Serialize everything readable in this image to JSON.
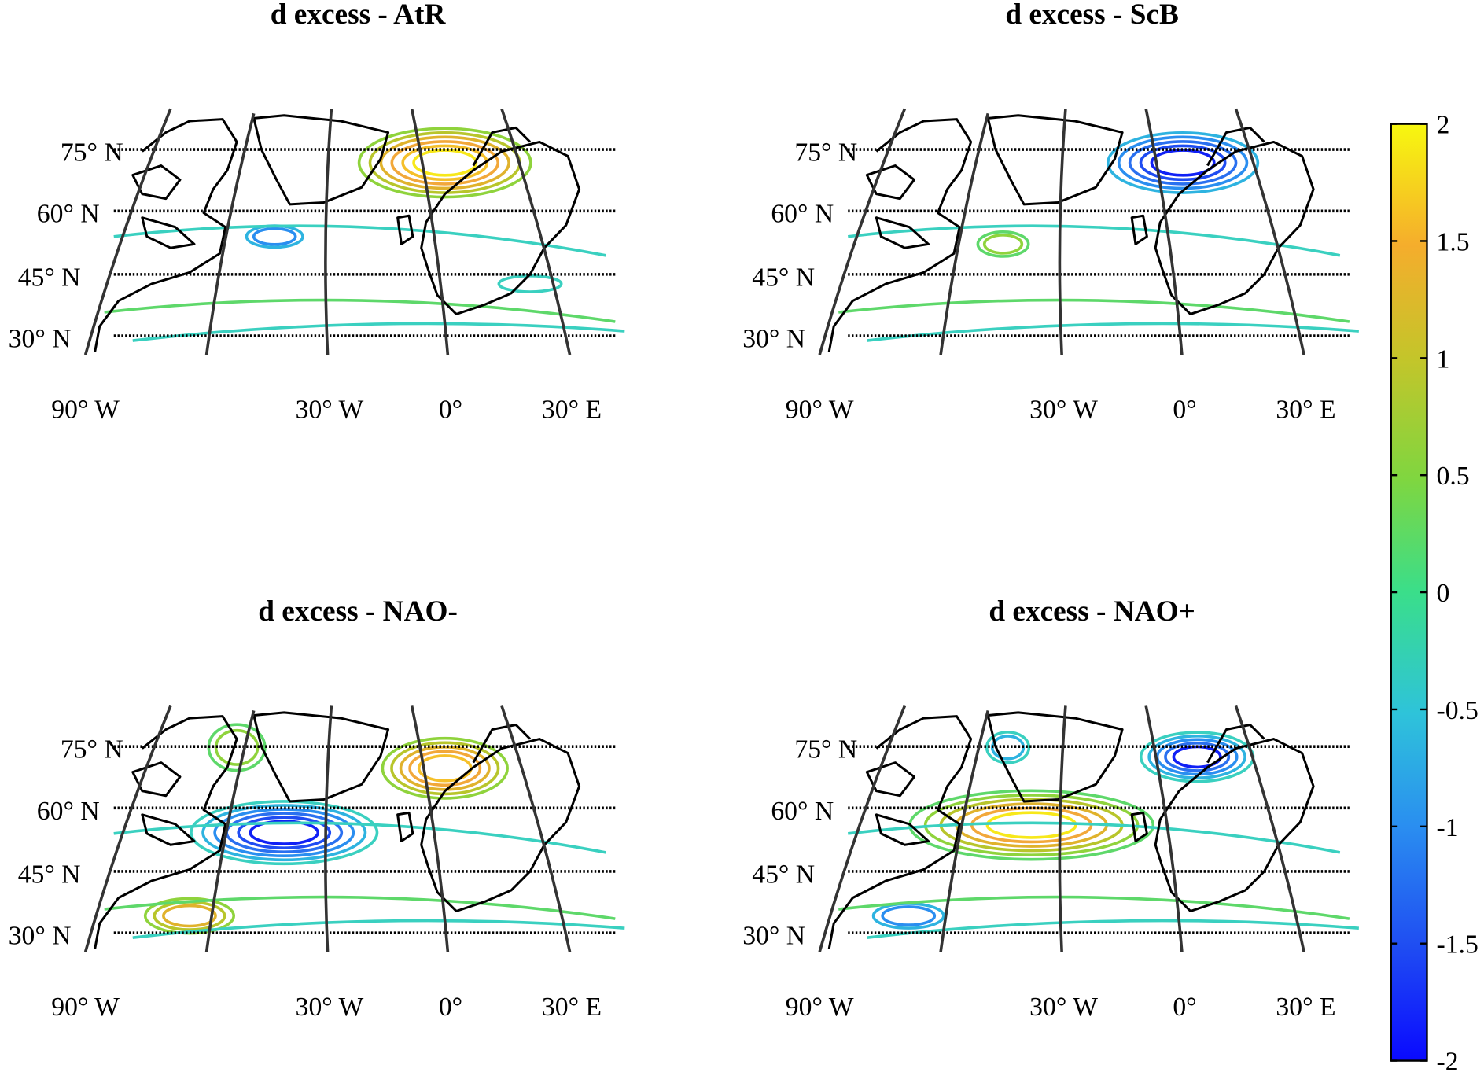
{
  "panels": [
    {
      "title": "d excess - AtR"
    },
    {
      "title": "d excess - ScB"
    },
    {
      "title": "d excess - NAO-"
    },
    {
      "title": "d excess - NAO+"
    }
  ],
  "lat_labels": [
    "75° N",
    "60° N",
    "45° N",
    "30° N"
  ],
  "lon_labels": [
    "90° W",
    "30° W",
    "0°",
    "30° E"
  ],
  "colorbar": {
    "lim": [
      -2,
      2
    ],
    "ticks": [
      2,
      1.5,
      1,
      0.5,
      0,
      -0.5,
      -1,
      -1.5,
      -2
    ]
  }
}
